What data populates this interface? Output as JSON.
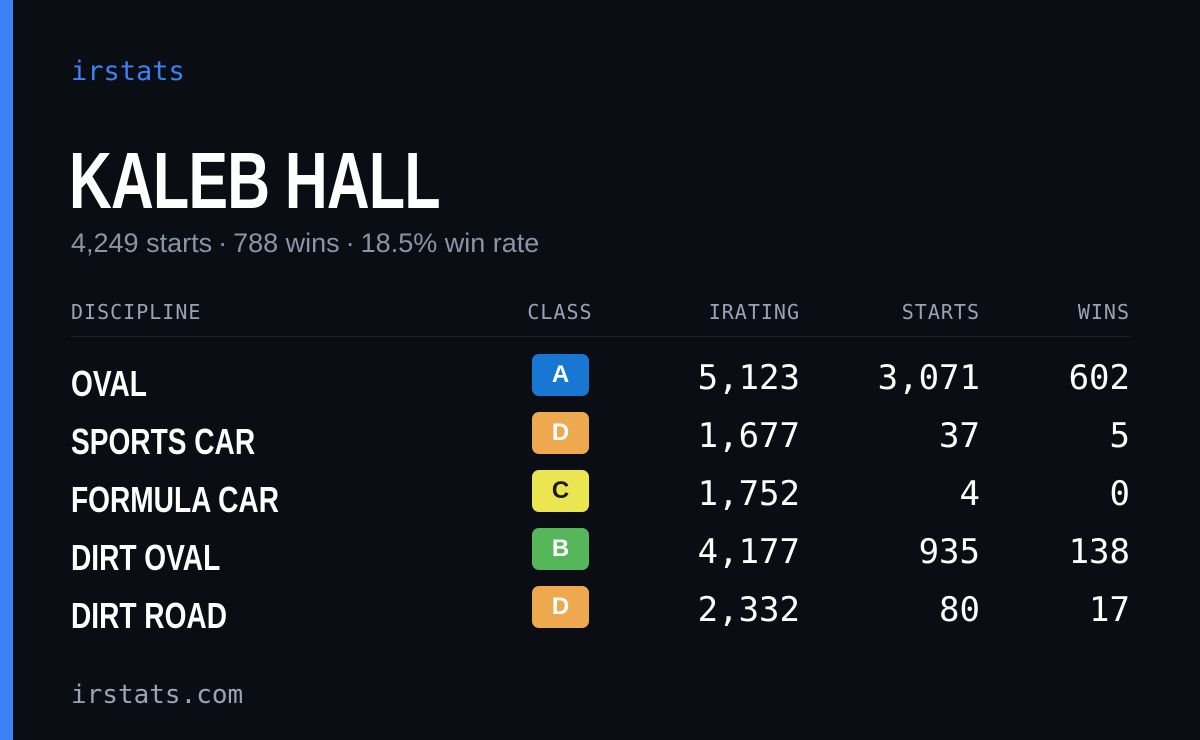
{
  "brand": "irstats",
  "driver": {
    "name": "KALEB HALL"
  },
  "summary": {
    "starts": "4,249 starts",
    "wins": "788 wins",
    "win_rate": "18.5% win rate",
    "separator": "·"
  },
  "table": {
    "headers": {
      "discipline": "DISCIPLINE",
      "class": "CLASS",
      "irating": "IRATING",
      "starts": "STARTS",
      "wins": "WINS"
    },
    "rows": [
      {
        "discipline": "OVAL",
        "class": "A",
        "class_color": "#1877d2",
        "class_text_color": "#ffffff",
        "irating": "5,123",
        "starts": "3,071",
        "wins": "602"
      },
      {
        "discipline": "SPORTS CAR",
        "class": "D",
        "class_color": "#eea94e",
        "class_text_color": "#ffffff",
        "irating": "1,677",
        "starts": "37",
        "wins": "5"
      },
      {
        "discipline": "FORMULA CAR",
        "class": "C",
        "class_color": "#ece552",
        "class_text_color": "#1a1a1a",
        "irating": "1,752",
        "starts": "4",
        "wins": "0"
      },
      {
        "discipline": "DIRT OVAL",
        "class": "B",
        "class_color": "#55b65a",
        "class_text_color": "#ffffff",
        "irating": "4,177",
        "starts": "935",
        "wins": "138"
      },
      {
        "discipline": "DIRT ROAD",
        "class": "D",
        "class_color": "#eea94e",
        "class_text_color": "#ffffff",
        "irating": "2,332",
        "starts": "80",
        "wins": "17"
      }
    ]
  },
  "footer": {
    "url": "irstats.com"
  },
  "colors": {
    "accent": "#3b82f6",
    "background": "#0b0d14",
    "muted_text": "#8b93a5"
  }
}
